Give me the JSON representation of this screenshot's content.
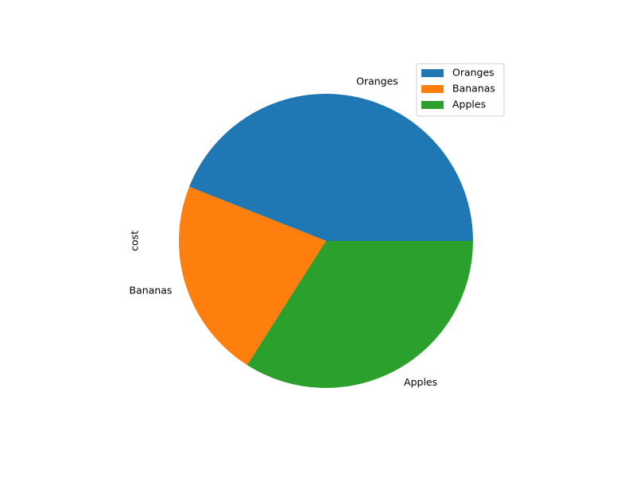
{
  "chart_data": {
    "type": "pie",
    "ylabel": "cost",
    "slices": [
      {
        "label": "Oranges",
        "value": 44,
        "color": "#1f77b4"
      },
      {
        "label": "Bananas",
        "value": 22,
        "color": "#ff7f0e"
      },
      {
        "label": "Apples",
        "value": 34,
        "color": "#2ca02c"
      }
    ],
    "legend": {
      "placement": "top-right",
      "entries": [
        "Oranges",
        "Bananas",
        "Apples"
      ]
    }
  }
}
